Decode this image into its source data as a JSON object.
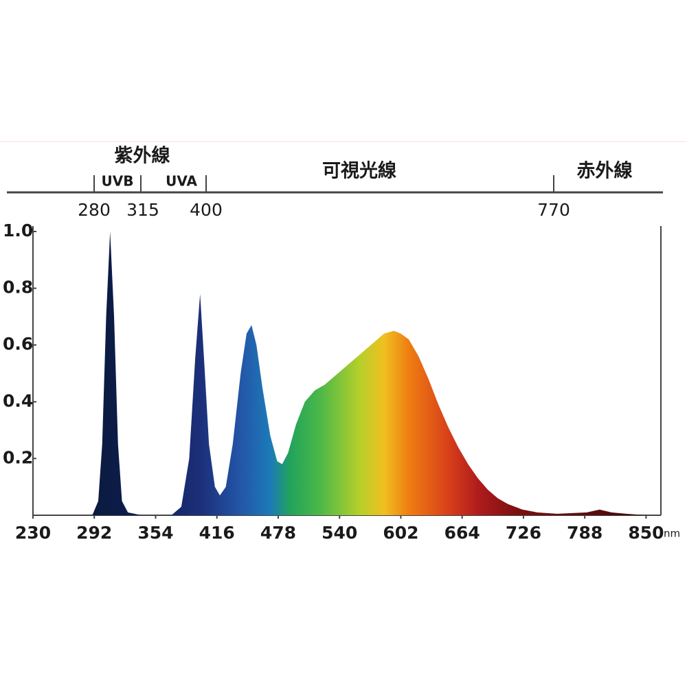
{
  "chart_data": {
    "type": "area",
    "bands": {
      "uv": "紫外線",
      "uvb": "UVB",
      "uva": "UVA",
      "visible": "可視光線",
      "ir": "赤外線",
      "ticks": [
        280,
        315,
        400,
        770
      ]
    },
    "x_unit": "nm",
    "x": [
      290,
      296,
      300,
      304,
      308,
      312,
      316,
      320,
      326,
      340,
      370,
      380,
      388,
      394,
      399,
      403,
      408,
      414,
      419,
      425,
      432,
      440,
      446,
      451,
      456,
      462,
      470,
      477,
      482,
      488,
      496,
      505,
      515,
      525,
      535,
      545,
      555,
      565,
      575,
      585,
      595,
      602,
      610,
      620,
      630,
      640,
      650,
      660,
      670,
      680,
      690,
      700,
      710,
      725,
      740,
      760,
      790,
      803,
      815,
      830,
      850
    ],
    "values": [
      0,
      0.05,
      0.25,
      0.7,
      1.0,
      0.7,
      0.25,
      0.05,
      0.01,
      0,
      0,
      0.03,
      0.2,
      0.55,
      0.78,
      0.55,
      0.25,
      0.1,
      0.07,
      0.1,
      0.25,
      0.5,
      0.64,
      0.67,
      0.6,
      0.45,
      0.28,
      0.19,
      0.18,
      0.22,
      0.32,
      0.4,
      0.44,
      0.46,
      0.49,
      0.52,
      0.55,
      0.58,
      0.61,
      0.64,
      0.65,
      0.64,
      0.62,
      0.56,
      0.48,
      0.39,
      0.31,
      0.24,
      0.18,
      0.13,
      0.09,
      0.06,
      0.04,
      0.02,
      0.01,
      0.005,
      0.01,
      0.02,
      0.01,
      0.005,
      0
    ],
    "gradient": [
      [
        290,
        "#0b1a3e"
      ],
      [
        330,
        "#0d1d4c"
      ],
      [
        400,
        "#1c2f7a"
      ],
      [
        440,
        "#2356a8"
      ],
      [
        470,
        "#1c7ab8"
      ],
      [
        490,
        "#22a35c"
      ],
      [
        520,
        "#4bb848"
      ],
      [
        560,
        "#b5cf2b"
      ],
      [
        585,
        "#f0c020"
      ],
      [
        610,
        "#ef7e12"
      ],
      [
        650,
        "#d8401a"
      ],
      [
        680,
        "#b01c1c"
      ],
      [
        720,
        "#7a1010"
      ],
      [
        800,
        "#5a0c0c"
      ],
      [
        850,
        "#3a0808"
      ]
    ],
    "xlim": [
      230,
      865
    ],
    "ylim": [
      0,
      1
    ],
    "xticks": [
      230,
      292,
      354,
      416,
      478,
      540,
      602,
      664,
      726,
      788,
      850
    ],
    "yticks": [
      0.2,
      0.4,
      0.6,
      0.8,
      {
        "value": 1,
        "label": "1.0"
      }
    ]
  }
}
